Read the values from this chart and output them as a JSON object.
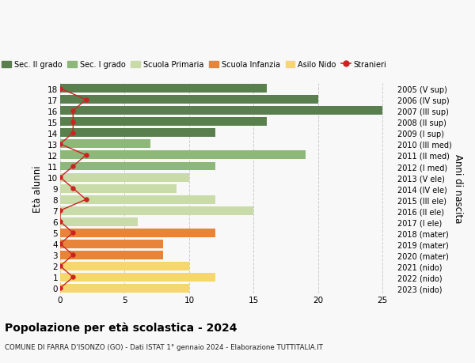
{
  "ages": [
    0,
    1,
    2,
    3,
    4,
    5,
    6,
    7,
    8,
    9,
    10,
    11,
    12,
    13,
    14,
    15,
    16,
    17,
    18
  ],
  "right_labels": [
    "2023 (nido)",
    "2022 (nido)",
    "2021 (nido)",
    "2020 (mater)",
    "2019 (mater)",
    "2018 (mater)",
    "2017 (I ele)",
    "2016 (II ele)",
    "2015 (III ele)",
    "2014 (IV ele)",
    "2013 (V ele)",
    "2012 (I med)",
    "2011 (II med)",
    "2010 (III med)",
    "2009 (I sup)",
    "2008 (II sup)",
    "2007 (III sup)",
    "2006 (IV sup)",
    "2005 (V sup)"
  ],
  "bar_values": [
    10,
    12,
    10,
    8,
    8,
    12,
    6,
    15,
    12,
    9,
    10,
    12,
    19,
    7,
    12,
    16,
    25,
    20,
    16
  ],
  "bar_colors": [
    "#f5d76e",
    "#f5d76e",
    "#f5d76e",
    "#e8833a",
    "#e8833a",
    "#e8833a",
    "#c8dba8",
    "#c8dba8",
    "#c8dba8",
    "#c8dba8",
    "#c8dba8",
    "#8db87a",
    "#8db87a",
    "#8db87a",
    "#5a7f4e",
    "#5a7f4e",
    "#5a7f4e",
    "#5a7f4e",
    "#5a7f4e"
  ],
  "stranieri_x": [
    0,
    1,
    0,
    1,
    0,
    1,
    0,
    0,
    2,
    1,
    0,
    1,
    2,
    0,
    1,
    1,
    1,
    2,
    0
  ],
  "legend_labels": [
    "Sec. II grado",
    "Sec. I grado",
    "Scuola Primaria",
    "Scuola Infanzia",
    "Asilo Nido",
    "Stranieri"
  ],
  "legend_colors": [
    "#5a7f4e",
    "#8db87a",
    "#c8dba8",
    "#e8833a",
    "#f5d76e",
    "#cc2222"
  ],
  "title": "Popolazione per età scolastica - 2024",
  "subtitle": "COMUNE DI FARRA D'ISONZO (GO) - Dati ISTAT 1° gennaio 2024 - Elaborazione TUTTITALIA.IT",
  "ylabel": "Età alunni",
  "ylabel2": "Anni di nascita",
  "xlim": [
    0,
    26
  ],
  "bg_color": "#f8f8f8",
  "grid_color": "#cccccc"
}
